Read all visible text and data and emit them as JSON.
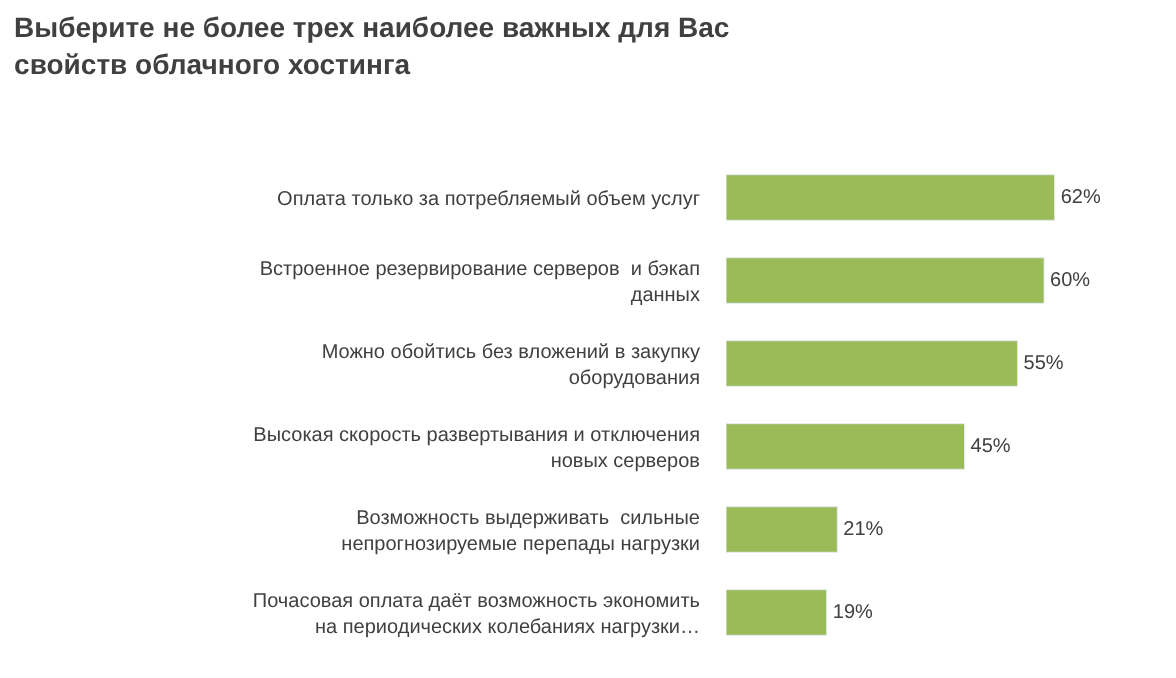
{
  "chart_data": {
    "type": "bar",
    "orientation": "horizontal",
    "title": "Выберите не более трех наиболее важных для Вас свойств облачного хостинга",
    "categories": [
      "Оплата только за потребляемый объем услуг",
      "Встроенное резервирование серверов  и бэкап данных",
      "Можно обойтись без вложений в закупку оборудования",
      "Высокая скорость развертывания и отключения новых серверов",
      "Возможность выдерживать  сильные непрогнозируемые перепады нагрузки",
      "Почасовая оплата даёт возможность экономить на периодических колебаниях нагрузки…"
    ],
    "values": [
      62,
      60,
      55,
      45,
      21,
      19
    ],
    "value_labels": [
      "62%",
      "60%",
      "55%",
      "45%",
      "21%",
      "19%"
    ],
    "color": "#9bbb59",
    "tick_labels": "y"
  }
}
